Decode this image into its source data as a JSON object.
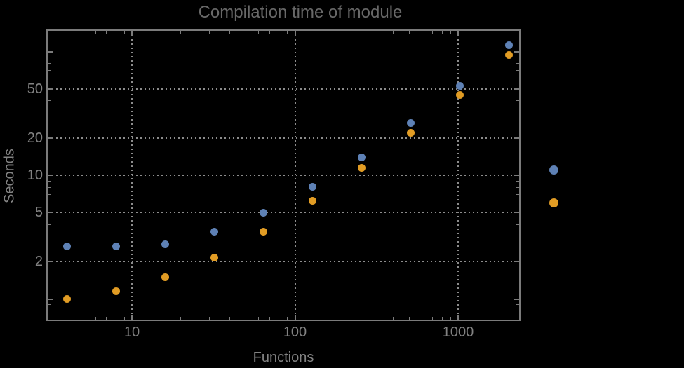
{
  "title": "Compilation time of module",
  "colors": {
    "background": "#000000",
    "frame": "#7b7b7b",
    "grid": "#8c8c8c",
    "title_text": "#686868",
    "label_text": "#828282",
    "series1": "#5e81b5",
    "series2": "#e19c24"
  },
  "chart_data": {
    "type": "scatter",
    "title": "Compilation time of module",
    "xlabel": "Functions",
    "ylabel": "Seconds",
    "x_scale": "log",
    "y_scale": "log",
    "xlim": [
      3.05,
      2360
    ],
    "ylim": [
      0.69,
      148
    ],
    "grid": "dotted",
    "x_ticks_labeled": [
      10,
      100,
      1000
    ],
    "y_ticks_labeled": [
      2,
      5,
      10,
      20,
      50
    ],
    "y_ticks_major_unlabeled": [
      1,
      100
    ],
    "x": [
      4,
      8,
      16,
      32,
      64,
      128,
      256,
      512,
      1024,
      2048
    ],
    "series": [
      {
        "name": "series-1-blue",
        "color": "#5e81b5",
        "values": [
          2.65,
          2.65,
          2.75,
          3.5,
          4.95,
          8.1,
          14,
          26.5,
          53,
          113
        ]
      },
      {
        "name": "series-2-orange",
        "color": "#e19c24",
        "values": [
          1.0,
          1.15,
          1.5,
          2.15,
          3.5,
          6.2,
          11.5,
          22,
          44.5,
          94
        ]
      }
    ],
    "legend": {
      "position": "right-of-plot",
      "labels_visible": false,
      "marker_colors": [
        "#5e81b5",
        "#e19c24"
      ]
    }
  }
}
